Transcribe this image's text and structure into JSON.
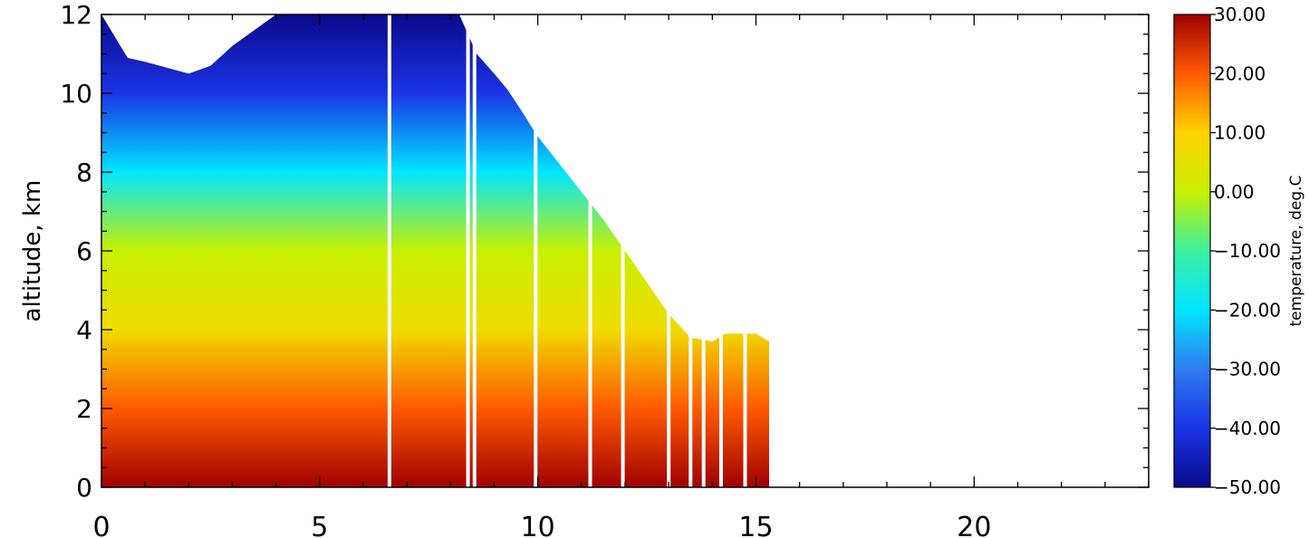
{
  "chart_data": {
    "type": "heatmap",
    "title": "",
    "xlabel": "",
    "ylabel": "altitude,  km",
    "xlim": [
      0,
      24
    ],
    "ylim": [
      0,
      12
    ],
    "x_ticks": [
      0,
      5,
      10,
      15,
      20
    ],
    "y_ticks": [
      0,
      2,
      4,
      6,
      8,
      10,
      12
    ],
    "colorbar": {
      "label": "temperature,  deg.C",
      "range": [
        -50,
        30
      ],
      "ticks": [
        "30.00",
        "20.00",
        "10.00",
        "0.00",
        "−10.00",
        "−20.00",
        "−30.00",
        "−40.00",
        "−50.00"
      ],
      "colormap": "rainbow (blue-cyan-green-yellow-red)"
    },
    "data_extent": {
      "x_range": [
        0,
        15.3
      ],
      "data_top_km": {
        "x": [
          0,
          0.6,
          1.0,
          2.0,
          2.5,
          3.0,
          3.5,
          4.0,
          8.2,
          8.6,
          9.0,
          9.3,
          9.6,
          10.0,
          10.5,
          11.0,
          11.5,
          12.0,
          12.5,
          13.0,
          13.5,
          14.0,
          14.3,
          14.6,
          15.0,
          15.3
        ],
        "y": [
          12.0,
          10.9,
          10.8,
          10.5,
          10.7,
          11.2,
          11.6,
          12.0,
          12.0,
          11.0,
          10.5,
          10.1,
          9.6,
          8.9,
          8.2,
          7.5,
          6.8,
          6.0,
          5.2,
          4.4,
          3.8,
          3.7,
          3.9,
          3.9,
          3.9,
          3.7
        ]
      },
      "gaps_x": [
        6.6,
        8.4,
        8.55,
        9.95,
        11.2,
        11.95,
        13.0,
        13.5,
        13.8,
        14.2,
        14.75
      ]
    },
    "temperature_profile": {
      "altitude_km": [
        0,
        2,
        4,
        6,
        8,
        10,
        12
      ],
      "temperature_c": [
        30,
        20,
        7,
        0,
        -20,
        -40,
        -50
      ]
    }
  }
}
